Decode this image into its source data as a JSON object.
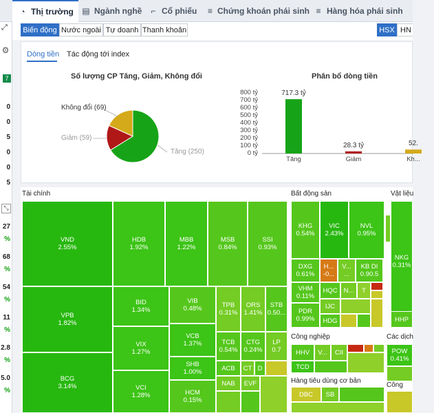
{
  "top_tabs": [
    {
      "label": "Thị trường",
      "icon": "pie-chart-icon",
      "active": true
    },
    {
      "label": "Ngành nghề",
      "icon": "grid-icon",
      "active": false
    },
    {
      "label": "Cổ phiếu",
      "icon": "chart-icon",
      "active": false
    },
    {
      "label": "Chứng khoán phái sinh",
      "icon": "derivative-icon",
      "active": false
    },
    {
      "label": "Hàng hóa phái sinh",
      "icon": "derivative-icon",
      "active": false
    }
  ],
  "left_strip": {
    "values": [
      "27",
      "%",
      "68",
      "%",
      "54",
      "%",
      "11",
      "%",
      "2.8",
      "%",
      "5.0",
      "%"
    ],
    "small": [
      "7",
      "0",
      "0",
      "5",
      "0",
      "0",
      "5",
      "0"
    ]
  },
  "sub_tabs": [
    "Biến động",
    "Nước ngoài",
    "Tự doanh",
    "Thanh khoản"
  ],
  "exchange_tabs": [
    "HSX",
    "HN"
  ],
  "panel_tabs": [
    "Dòng tiền",
    "Tác động tới index"
  ],
  "pie_chart": {
    "title": "Số lượng CP Tăng, Giảm, Không đổi",
    "slices": [
      {
        "label": "Tăng (250)",
        "value": 250,
        "color": "#17a317"
      },
      {
        "label": "Giảm (59)",
        "value": 59,
        "color": "#b01818"
      },
      {
        "label": "Không đổi (69)",
        "value": 69,
        "color": "#d4aa1a"
      }
    ]
  },
  "chart_data": {
    "type": "bar",
    "title": "Phân bổ dòng tiền",
    "categories": [
      "Tăng",
      "Giảm",
      "Kh..."
    ],
    "values": [
      717.3,
      28.3,
      52
    ],
    "value_labels": [
      "717.3 tỷ",
      "28.3 tỷ",
      "52."
    ],
    "colors": [
      "#17a317",
      "#b01818",
      "#d4aa1a"
    ],
    "yticks": [
      "0 tỷ",
      "100 tỷ",
      "200 tỷ",
      "300 tỷ",
      "400 tỷ",
      "500 tỷ",
      "600 tỷ",
      "700 tỷ",
      "800 tỷ"
    ],
    "ylim": [
      0,
      800
    ]
  },
  "heatmap": {
    "sections": [
      "Tài chính",
      "Bất động sản",
      "Vật liệu",
      "Công nghiệp",
      "Các dịch",
      "Hàng tiêu dùng cơ bản",
      "Công"
    ],
    "tiles": [
      {
        "n": "VND",
        "v": "2.55%"
      },
      {
        "n": "HDB",
        "v": "1.92%"
      },
      {
        "n": "MBB",
        "v": "1.22%"
      },
      {
        "n": "MSB",
        "v": "0.84%"
      },
      {
        "n": "SSI",
        "v": "0.93%"
      },
      {
        "n": "VPB",
        "v": "1.82%"
      },
      {
        "n": "BID",
        "v": "1.34%"
      },
      {
        "n": "VIB",
        "v": "0.48%"
      },
      {
        "n": "TPB",
        "v": "0.31%"
      },
      {
        "n": "ORS",
        "v": "1.41%"
      },
      {
        "n": "STB",
        "v": "0.50..."
      },
      {
        "n": "VIX",
        "v": "1.27%"
      },
      {
        "n": "VCB",
        "v": "1.37%"
      },
      {
        "n": "TCB",
        "v": "0.54%"
      },
      {
        "n": "CTG",
        "v": "0.24%"
      },
      {
        "n": "LP",
        "v": "0.7"
      },
      {
        "n": "BCG",
        "v": "3.14%"
      },
      {
        "n": "SHB",
        "v": "1.00%"
      },
      {
        "n": "ACB",
        "v": ""
      },
      {
        "n": "CT",
        "v": ""
      },
      {
        "n": "D",
        "v": ""
      },
      {
        "n": "VCI",
        "v": "1.28%"
      },
      {
        "n": "HCM",
        "v": "0.15%"
      },
      {
        "n": "NAB",
        "v": ""
      },
      {
        "n": "EVF",
        "v": ""
      },
      {
        "n": "KHG",
        "v": "0.54%"
      },
      {
        "n": "VIC",
        "v": "2.43%"
      },
      {
        "n": "NVL",
        "v": "0.95%"
      },
      {
        "n": "DXG",
        "v": "0.61%"
      },
      {
        "n": "H...",
        "v": "-0..."
      },
      {
        "n": "V...",
        "v": "..."
      },
      {
        "n": "KB DI",
        "v": "0.90.5"
      },
      {
        "n": "VHM",
        "v": "0.11%"
      },
      {
        "n": "HQC",
        "v": ""
      },
      {
        "n": "N...",
        "v": ""
      },
      {
        "n": "T",
        "v": ""
      },
      {
        "n": "PDR",
        "v": "0.99%"
      },
      {
        "n": "IJC",
        "v": ""
      },
      {
        "n": "HDG",
        "v": ""
      },
      {
        "n": "NKG",
        "v": "0.31%"
      },
      {
        "n": "HHP",
        "v": ""
      },
      {
        "n": "HHV",
        "v": ""
      },
      {
        "n": "V...",
        "v": ""
      },
      {
        "n": "CII",
        "v": ""
      },
      {
        "n": "TCD",
        "v": ""
      },
      {
        "n": "POW",
        "v": "0.41%"
      },
      {
        "n": "DBC",
        "v": ""
      },
      {
        "n": "SB",
        "v": ""
      }
    ]
  }
}
